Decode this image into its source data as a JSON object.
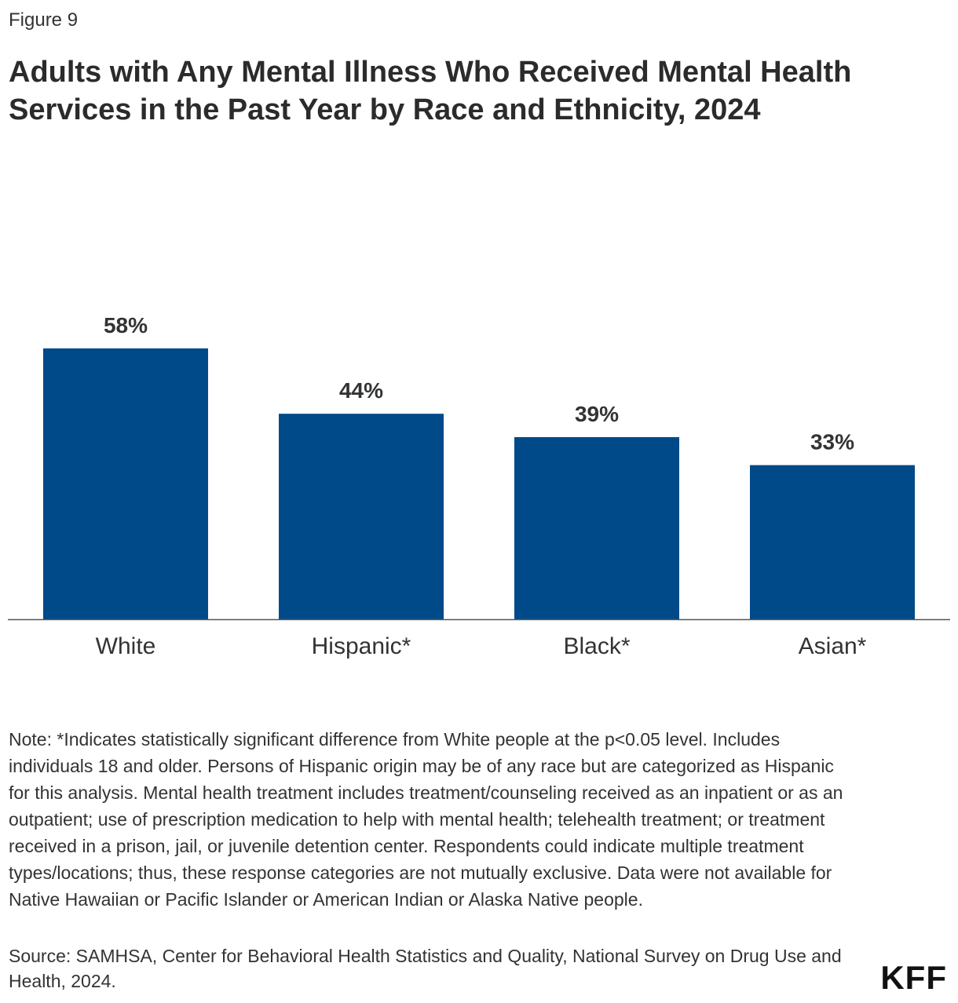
{
  "figure_label": "Figure 9",
  "title": "Adults with Any Mental Illness Who Received Mental Health Services in the Past Year by Race and Ethnicity, 2024",
  "note": "Note: *Indicates statistically significant difference from White people at the p<0.05 level. Includes individuals 18 and older. Persons of Hispanic origin may be of any race but are categorized as Hispanic for this analysis. Mental health treatment includes treatment/counseling received as an inpatient or as an outpatient; use of prescription medication to help with mental health; telehealth treatment; or treatment received in a prison, jail, or juvenile detention center. Respondents could indicate multiple treatment types/locations; thus, these response categories are not mutually exclusive. Data were not available for Native Hawaiian or Pacific Islander or American Indian or Alaska Native people.",
  "source": "Source: SAMHSA, Center for Behavioral Health Statistics and Quality, National Survey on Drug Use and Health, 2024.",
  "logo": "KFF",
  "chart_data": {
    "type": "bar",
    "categories": [
      "White",
      "Hispanic*",
      "Black*",
      "Asian*"
    ],
    "values": [
      58,
      44,
      39,
      33
    ],
    "value_labels": [
      "58%",
      "44%",
      "39%",
      "33%"
    ],
    "title": "",
    "xlabel": "",
    "ylabel": "",
    "ylim": [
      0,
      60
    ],
    "grid": false,
    "legend": "none",
    "bar_color": "#004a8a",
    "axis_color": "#555555"
  }
}
